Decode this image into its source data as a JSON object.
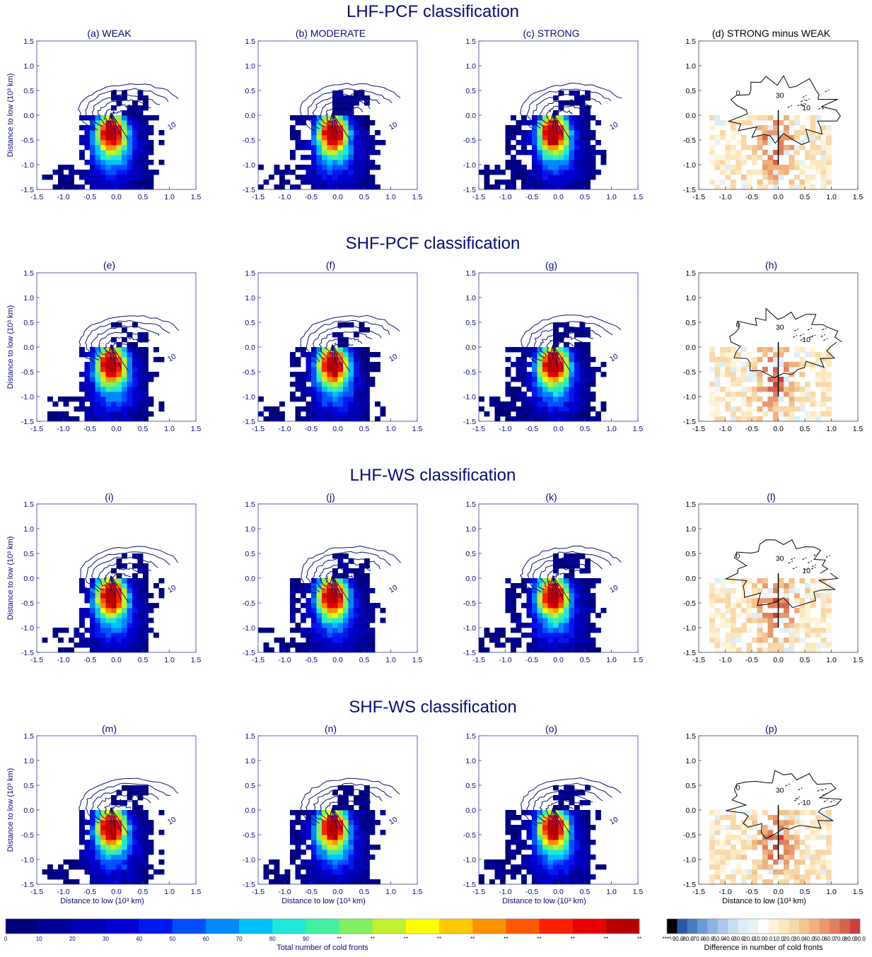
{
  "chart_data": {
    "type": "heatmap",
    "x_ticks": [
      "-1.5",
      "-1.0",
      "-0.5",
      "0.0",
      "0.5",
      "1.0",
      "1.5"
    ],
    "y_ticks": [
      "-1.5",
      "-1.0",
      "-0.5",
      "0.0",
      "0.5",
      "1.0",
      "1.5"
    ],
    "xlim": [
      -1.5,
      1.5
    ],
    "ylim": [
      -1.5,
      1.5
    ],
    "ylabel": "Distance to low (10³ km)",
    "xlabel": "Distance to low (10³ km)",
    "contour_label": "10",
    "diff_contour_labels": [
      "0",
      "30",
      "10"
    ],
    "rows": [
      {
        "title": "LHF-PCF classification",
        "panels": [
          "(a) WEAK",
          "(b) MODERATE",
          "(c) STRONG",
          "(d) STRONG minus WEAK"
        ]
      },
      {
        "title": "SHF-PCF classification",
        "panels": [
          "(e)",
          "(f)",
          "(g)",
          "(h)"
        ]
      },
      {
        "title": "LHF-WS classification",
        "panels": [
          "(i)",
          "(j)",
          "(k)",
          "(l)"
        ]
      },
      {
        "title": "SHF-WS classification",
        "panels": [
          "(m)",
          "(n)",
          "(o)",
          "(p)"
        ]
      }
    ],
    "colorbar_total": {
      "label": "Total number of cold fronts",
      "colors": [
        "#00007a",
        "#000096",
        "#0000b4",
        "#0000d2",
        "#0018f0",
        "#0050ff",
        "#0088ff",
        "#00c0ff",
        "#20e8d8",
        "#40f0a0",
        "#80f060",
        "#c0f030",
        "#ffff00",
        "#ffc800",
        "#ff9000",
        "#ff5800",
        "#ff2000",
        "#e80000",
        "#b40000"
      ],
      "ticks": [
        "0",
        "10",
        "20",
        "30",
        "40",
        "50",
        "60",
        "70",
        "80",
        "90",
        "**",
        "**",
        "**",
        "**",
        "**",
        "**",
        "**",
        "**",
        "**",
        "**"
      ]
    },
    "colorbar_diff": {
      "label": "Difference in number of cold fronts",
      "colors": [
        "#000000",
        "#2a56a8",
        "#4a7cc4",
        "#6c9ad4",
        "#8cb4e0",
        "#acc8ec",
        "#c8dcf4",
        "#dcecf8",
        "#e8f4f4",
        "#ffffff",
        "#fff4d8",
        "#fce8c0",
        "#f8d8a8",
        "#f4c490",
        "#f0b07c",
        "#e8986c",
        "#e0805c",
        "#d4644c",
        "#c84040"
      ],
      "ticks": [
        "****",
        "-90.0",
        "-80.0",
        "-70.0",
        "-60.0",
        "-50.0",
        "-40.0",
        "-30.0",
        "-20.0",
        "-10.0",
        "0.0",
        "10.0",
        "20.0",
        "30.0",
        "40.0",
        "50.0",
        "60.0",
        "70.0",
        "80.0",
        "90.0"
      ]
    }
  }
}
